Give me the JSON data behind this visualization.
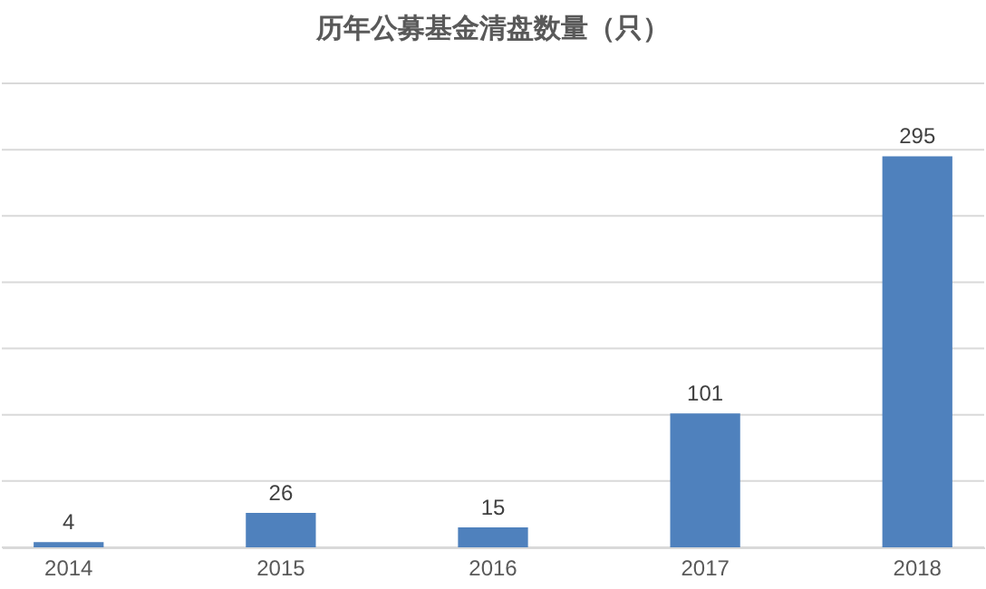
{
  "chart_data": {
    "type": "bar",
    "title": "历年公募基金清盘数量（只）",
    "categories": [
      "2014",
      "2015",
      "2016",
      "2017",
      "2018"
    ],
    "values": [
      4,
      26,
      15,
      101,
      295
    ],
    "color": "#4f81bd",
    "ylim": [
      0,
      350
    ],
    "yticks": [
      {
        "value": 0,
        "label": null
      },
      {
        "value": 50,
        "label": null
      },
      {
        "value": 100,
        "label": null
      },
      {
        "value": 150,
        "label": null
      },
      {
        "value": 200,
        "label": null
      },
      {
        "value": 250,
        "label": null
      },
      {
        "value": 300,
        "label": null
      },
      {
        "value": 350,
        "label": null
      }
    ],
    "tick_labels": "x",
    "grid": "y",
    "data_labels": true
  }
}
